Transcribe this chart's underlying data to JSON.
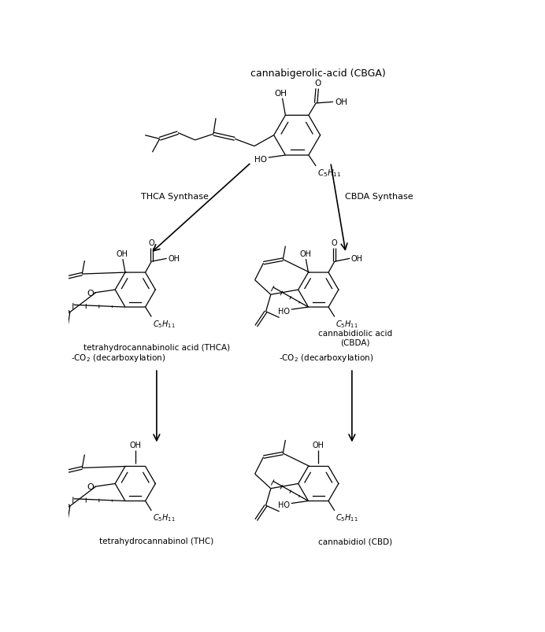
{
  "title": "cannabigerolic-acid (CBGA)",
  "background_color": "#ffffff",
  "text_color": "#000000",
  "thca_synthase_label": "THCA Synthase",
  "cbda_synthase_label": "CBDA Synthase",
  "thca_label": "tetrahydrocannabinolic acid (THCA)",
  "cbda_label": "cannabidiolic acid\n(CBDA)",
  "thc_label": "tetrahydrocannabinol (THC)",
  "cbd_label": "cannabidiol (CBD)",
  "decarb_left": "-CO$_2$ (decarboxylation)",
  "decarb_right": "-CO$_2$ (decarboxylation)",
  "figwidth": 6.92,
  "figheight": 8.04,
  "dpi": 100
}
